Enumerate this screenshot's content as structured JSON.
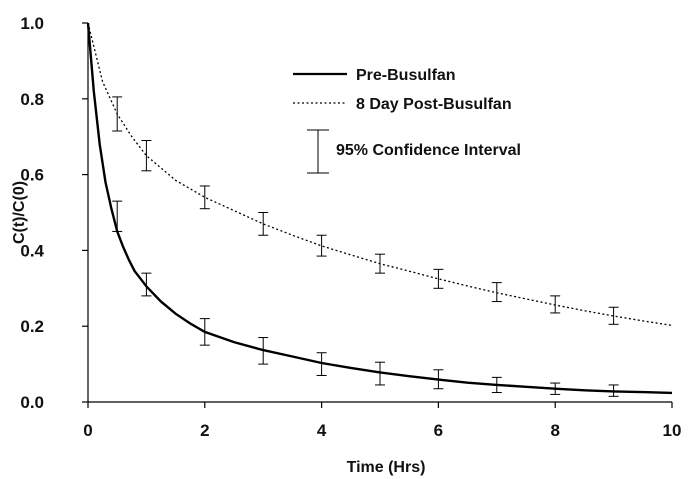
{
  "chart_data": {
    "type": "line",
    "xlabel": "Time (Hrs)",
    "ylabel": "C(t)/C(0)",
    "xlim": [
      0,
      10
    ],
    "ylim": [
      0,
      1
    ],
    "x_ticks": [
      0,
      2,
      4,
      6,
      8,
      10
    ],
    "y_ticks": [
      0.0,
      0.2,
      0.4,
      0.6,
      0.8,
      1.0
    ],
    "x_tick_labels": [
      "0",
      "2",
      "4",
      "6",
      "8",
      "10"
    ],
    "y_tick_labels": [
      "0.0",
      "0.2",
      "0.4",
      "0.6",
      "0.8",
      "1.0"
    ],
    "grid": false,
    "legend_position": "top-right",
    "series": [
      {
        "name": "Pre-Busulfan",
        "style": "solid",
        "color": "#000000",
        "curve_x": [
          0,
          0.1,
          0.2,
          0.3,
          0.4,
          0.5,
          0.6,
          0.7,
          0.8,
          0.9,
          1.0,
          1.25,
          1.5,
          1.75,
          2,
          2.5,
          3,
          3.5,
          4,
          4.5,
          5,
          5.5,
          6,
          6.5,
          7,
          7.5,
          8,
          8.5,
          9,
          9.5,
          10
        ],
        "curve_y": [
          1.0,
          0.82,
          0.68,
          0.58,
          0.51,
          0.45,
          0.41,
          0.375,
          0.345,
          0.325,
          0.305,
          0.265,
          0.233,
          0.207,
          0.185,
          0.158,
          0.137,
          0.12,
          0.103,
          0.09,
          0.078,
          0.068,
          0.059,
          0.051,
          0.045,
          0.04,
          0.035,
          0.031,
          0.028,
          0.026,
          0.024
        ],
        "points_x": [
          0.5,
          1,
          2,
          3,
          4,
          5,
          6,
          7,
          8,
          9
        ],
        "points_y": [
          0.49,
          0.31,
          0.185,
          0.135,
          0.1,
          0.075,
          0.06,
          0.045,
          0.035,
          0.03
        ],
        "ci_low": [
          0.45,
          0.28,
          0.15,
          0.1,
          0.07,
          0.045,
          0.035,
          0.025,
          0.02,
          0.015
        ],
        "ci_high": [
          0.53,
          0.34,
          0.22,
          0.17,
          0.13,
          0.105,
          0.085,
          0.065,
          0.05,
          0.045
        ]
      },
      {
        "name": "8 Day Post-Busulfan",
        "style": "dotted",
        "color": "#000000",
        "curve_x": [
          0,
          0.25,
          0.5,
          0.75,
          1,
          1.5,
          2,
          2.5,
          3,
          3.5,
          4,
          4.5,
          5,
          5.5,
          6,
          6.5,
          7,
          7.5,
          8,
          8.5,
          9,
          9.5,
          10
        ],
        "curve_y": [
          1.0,
          0.845,
          0.76,
          0.7,
          0.65,
          0.585,
          0.54,
          0.505,
          0.47,
          0.44,
          0.412,
          0.388,
          0.365,
          0.345,
          0.325,
          0.306,
          0.288,
          0.272,
          0.256,
          0.241,
          0.227,
          0.214,
          0.202
        ],
        "points_x": [
          0.5,
          1,
          2,
          3,
          4,
          5,
          6,
          7,
          8,
          9
        ],
        "points_y": [
          0.76,
          0.65,
          0.54,
          0.47,
          0.412,
          0.365,
          0.325,
          0.288,
          0.256,
          0.227
        ],
        "ci_low": [
          0.715,
          0.61,
          0.51,
          0.44,
          0.385,
          0.34,
          0.3,
          0.265,
          0.235,
          0.205
        ],
        "ci_high": [
          0.805,
          0.69,
          0.57,
          0.5,
          0.44,
          0.39,
          0.35,
          0.315,
          0.28,
          0.25
        ]
      }
    ],
    "legend": [
      {
        "label": "Pre-Busulfan",
        "kind": "solid-line"
      },
      {
        "label": "8 Day Post-Busulfan",
        "kind": "dotted-line"
      },
      {
        "label": "95% Confidence Interval",
        "kind": "error-bar"
      }
    ]
  }
}
